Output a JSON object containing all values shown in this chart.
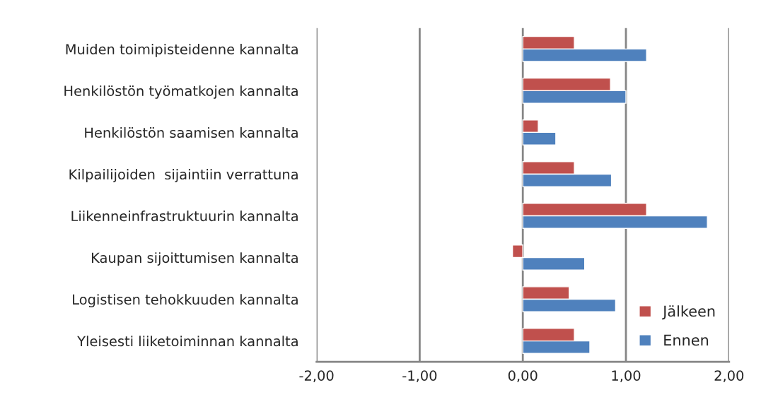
{
  "chart_data": {
    "type": "bar",
    "orientation": "horizontal",
    "categories": [
      "Muiden toimipisteidenne kannalta",
      "Henkilöstön työmatkojen kannalta",
      "Henkilöstön saamisen kannalta",
      "Kilpailijoiden  sijaintiin verrattuna",
      "Liikenneinfrastruktuurin kannalta",
      "Kaupan sijoittumisen kannalta",
      "Logistisen tehokkuuden kannalta",
      "Yleisesti liiketoiminnan kannalta"
    ],
    "series": [
      {
        "name": "Jälkeen",
        "color": "#c0504d",
        "values": [
          0.5,
          0.85,
          0.15,
          0.5,
          1.2,
          -0.1,
          0.45,
          0.5
        ]
      },
      {
        "name": "Ennen",
        "color": "#4f81bd",
        "values": [
          1.2,
          1.0,
          0.32,
          0.86,
          1.79,
          0.6,
          0.9,
          0.65
        ]
      }
    ],
    "xlim": [
      -2,
      2
    ],
    "xticks": [
      {
        "value": -2,
        "label": "-2,00"
      },
      {
        "value": -1,
        "label": "-1,00"
      },
      {
        "value": 0,
        "label": "0,00"
      },
      {
        "value": 1,
        "label": "1,00"
      },
      {
        "value": 2,
        "label": "2,00"
      }
    ],
    "grid": "x",
    "legend": "bottom right"
  }
}
